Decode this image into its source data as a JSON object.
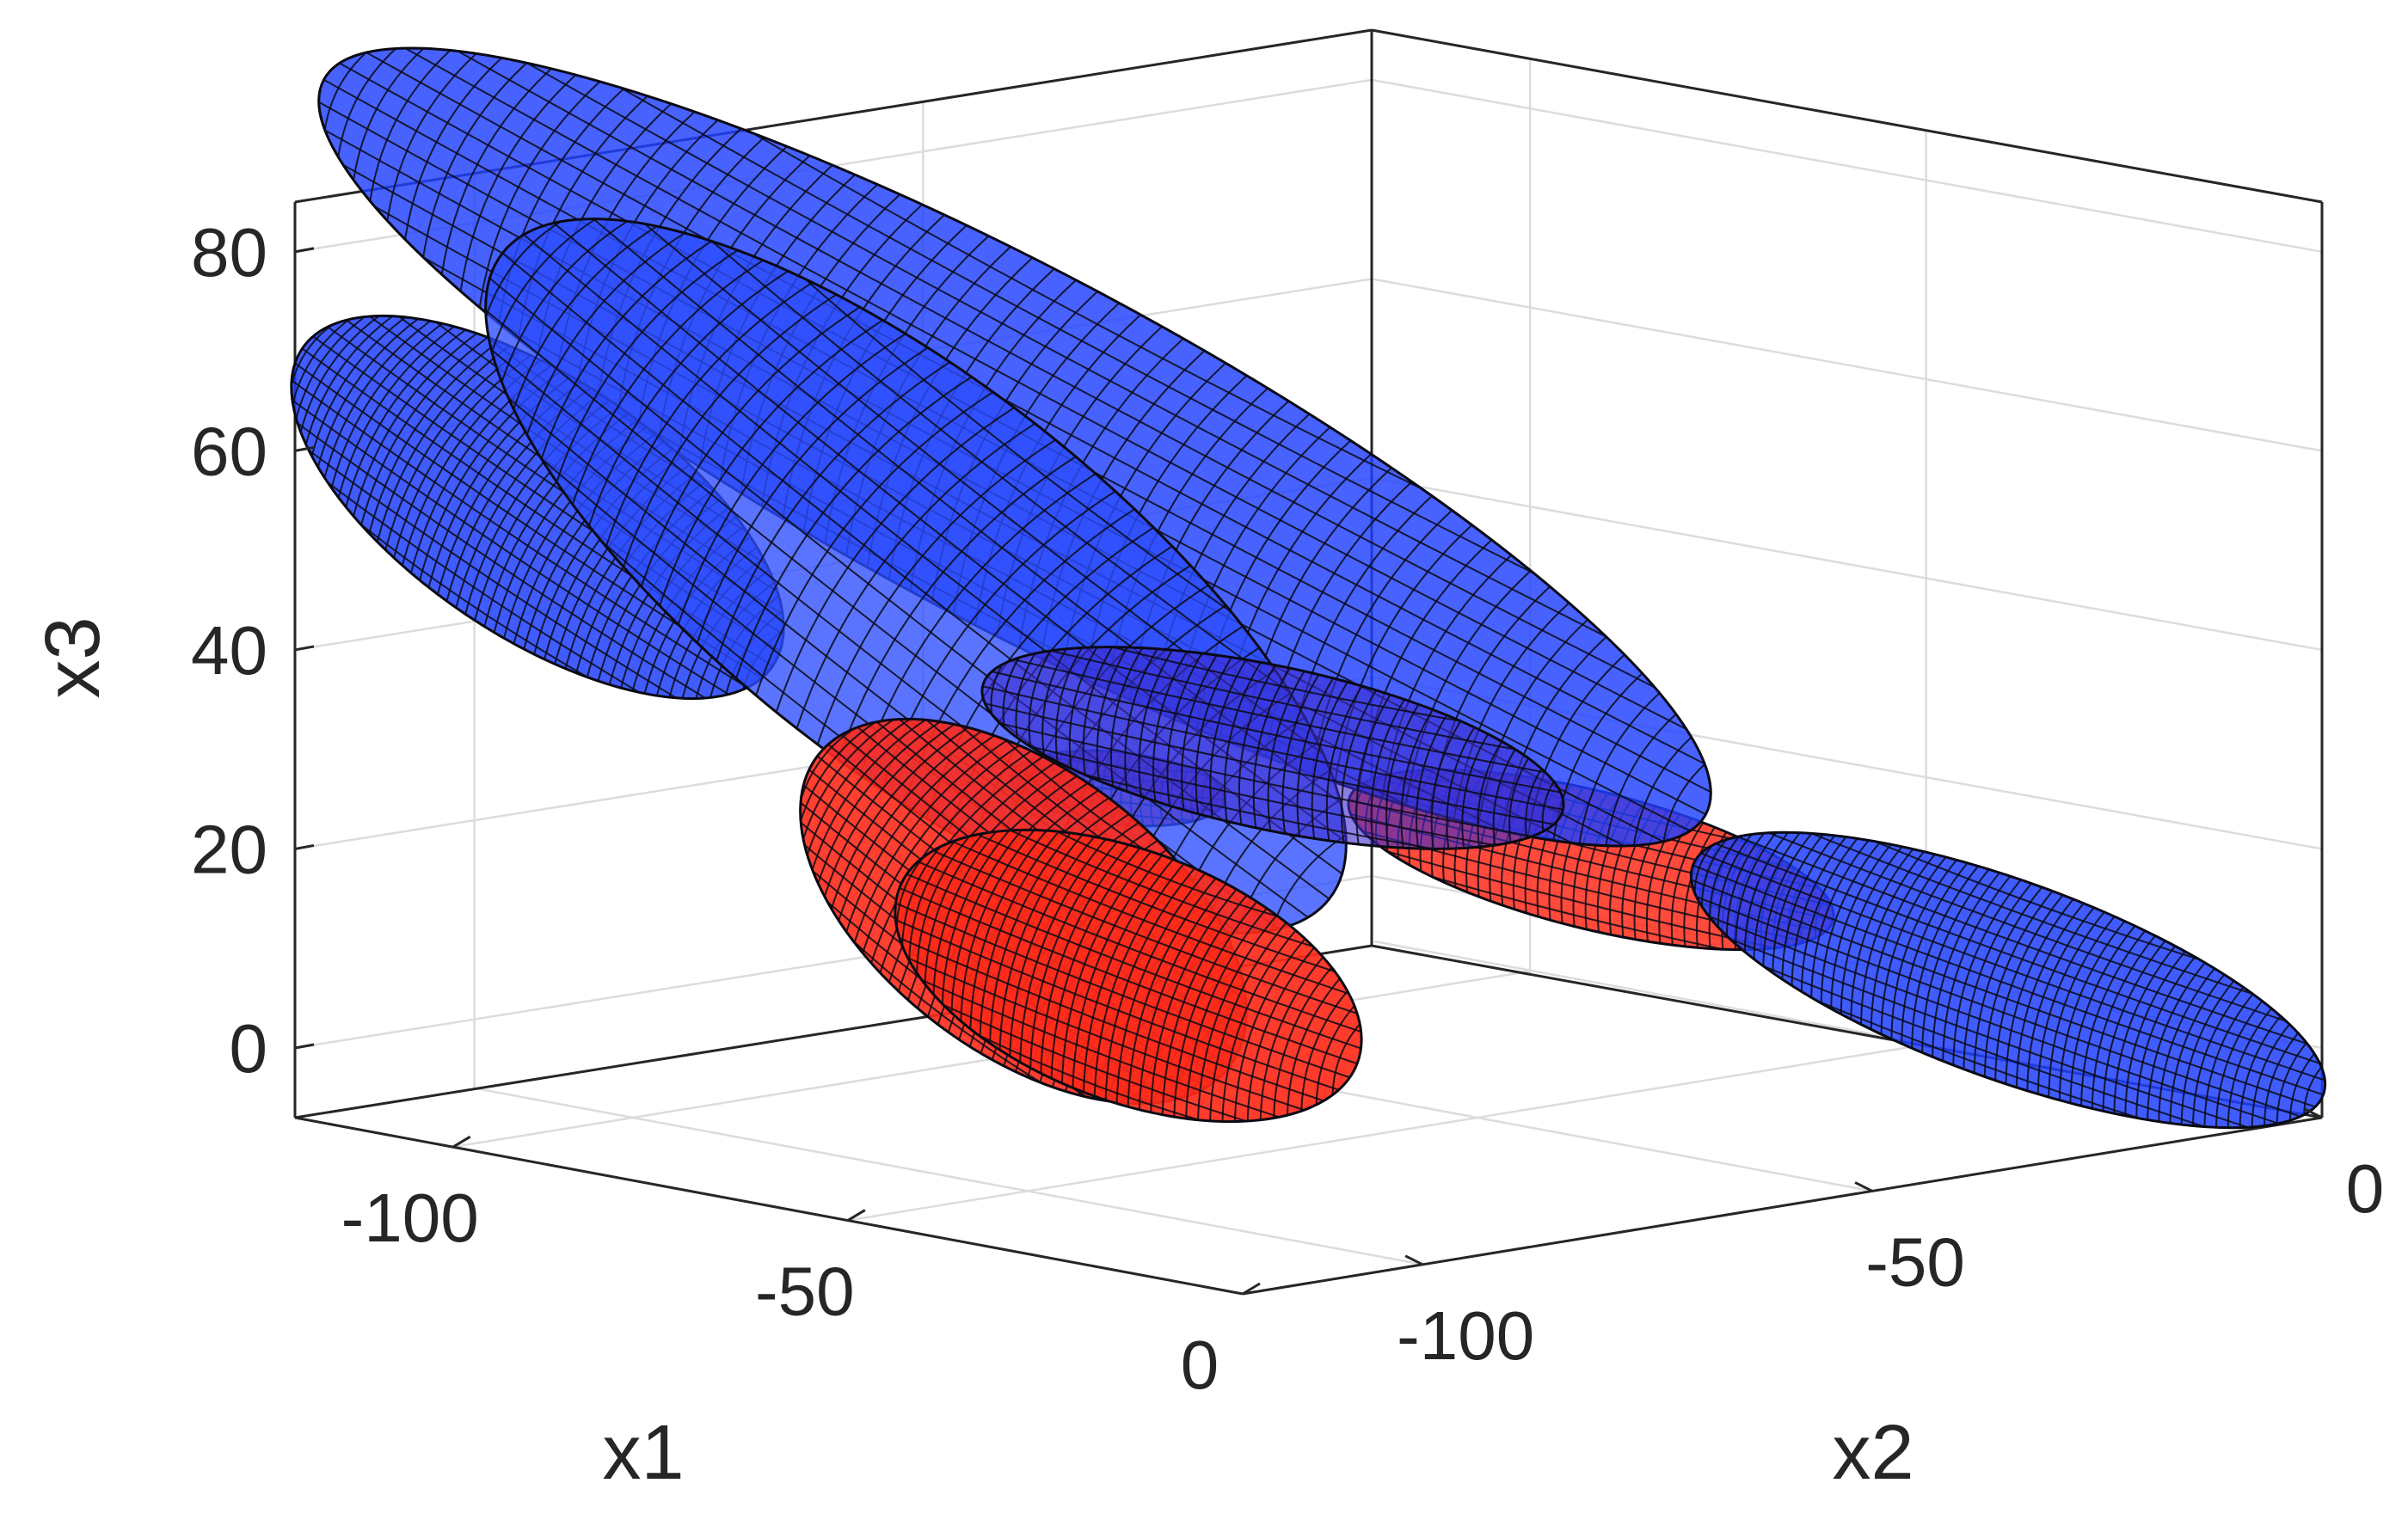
{
  "chart_data": {
    "type": "3d-ellipsoids",
    "xlabel": "x1",
    "ylabel": "x2",
    "zlabel": "x3",
    "x_ticks": [
      -100,
      -50,
      0
    ],
    "x_tick_labels": [
      "-100",
      "-50",
      "0"
    ],
    "y_ticks": [
      -100,
      -50,
      0
    ],
    "y_tick_labels": [
      "-100",
      "-50",
      "0"
    ],
    "z_ticks": [
      0,
      20,
      40,
      60,
      80
    ],
    "z_tick_labels": [
      "0",
      "20",
      "40",
      "60",
      "80"
    ],
    "zlim": [
      -7,
      85
    ],
    "grid": "on",
    "colors": {
      "blue": "#1f3fff",
      "red": "#ff2a1a",
      "edge": "#0a0a14",
      "box": "#262626",
      "grid": "#dcdcdc"
    },
    "series": [
      {
        "color": "blue",
        "ellipsoids": 5
      },
      {
        "color": "red",
        "ellipsoids": 4
      }
    ]
  }
}
